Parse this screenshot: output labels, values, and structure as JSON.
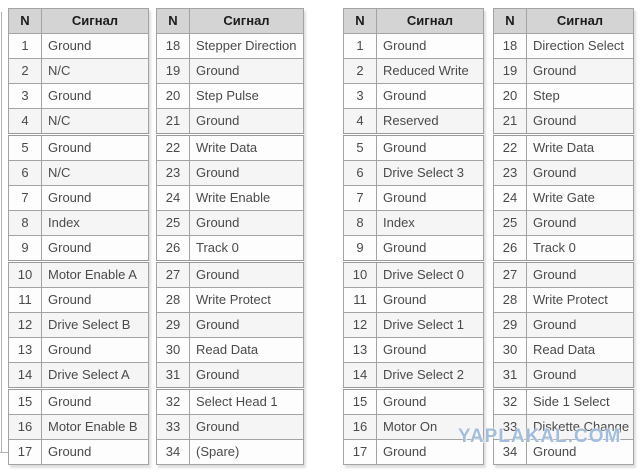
{
  "columns": {
    "n": "N",
    "signal": "Сигнал"
  },
  "tables": [
    {
      "header": {
        "n": "N",
        "signal": "Сигнал"
      },
      "rows": [
        [
          "1",
          "Ground"
        ],
        [
          "2",
          "N/C"
        ],
        [
          "3",
          "Ground"
        ],
        [
          "4",
          "N/C"
        ],
        [
          "5",
          "Ground"
        ],
        [
          "6",
          "N/C"
        ],
        [
          "7",
          "Ground"
        ],
        [
          "8",
          "Index"
        ],
        [
          "9",
          "Ground"
        ],
        [
          "10",
          "Motor Enable A"
        ],
        [
          "11",
          "Ground"
        ],
        [
          "12",
          "Drive Select B"
        ],
        [
          "13",
          "Ground"
        ],
        [
          "14",
          "Drive Select A"
        ],
        [
          "15",
          "Ground"
        ],
        [
          "16",
          "Motor Enable B"
        ],
        [
          "17",
          "Ground"
        ]
      ]
    },
    {
      "header": {
        "n": "N",
        "signal": "Сигнал"
      },
      "rows": [
        [
          "18",
          "Stepper Direction"
        ],
        [
          "19",
          "Ground"
        ],
        [
          "20",
          "Step Pulse"
        ],
        [
          "21",
          "Ground"
        ],
        [
          "22",
          "Write Data"
        ],
        [
          "23",
          "Ground"
        ],
        [
          "24",
          "Write Enable"
        ],
        [
          "25",
          "Ground"
        ],
        [
          "26",
          "Track 0"
        ],
        [
          "27",
          "Ground"
        ],
        [
          "28",
          "Write Protect"
        ],
        [
          "29",
          "Ground"
        ],
        [
          "30",
          "Read Data"
        ],
        [
          "31",
          "Ground"
        ],
        [
          "32",
          "Select Head 1"
        ],
        [
          "33",
          "Ground"
        ],
        [
          "34",
          "(Spare)"
        ]
      ]
    },
    {
      "header": {
        "n": "N",
        "signal": "Сигнал"
      },
      "rows": [
        [
          "1",
          "Ground"
        ],
        [
          "2",
          "Reduced Write"
        ],
        [
          "3",
          "Ground"
        ],
        [
          "4",
          "Reserved"
        ],
        [
          "5",
          "Ground"
        ],
        [
          "6",
          "Drive Select 3"
        ],
        [
          "7",
          "Ground"
        ],
        [
          "8",
          "Index"
        ],
        [
          "9",
          "Ground"
        ],
        [
          "10",
          "Drive Select 0"
        ],
        [
          "11",
          "Ground"
        ],
        [
          "12",
          "Drive Select 1"
        ],
        [
          "13",
          "Ground"
        ],
        [
          "14",
          "Drive Select 2"
        ],
        [
          "15",
          "Ground"
        ],
        [
          "16",
          "Motor On"
        ],
        [
          "17",
          "Ground"
        ]
      ]
    },
    {
      "header": {
        "n": "N",
        "signal": "Сигнал"
      },
      "rows": [
        [
          "18",
          "Direction Select"
        ],
        [
          "19",
          "Ground"
        ],
        [
          "20",
          "Step"
        ],
        [
          "21",
          "Ground"
        ],
        [
          "22",
          "Write Data"
        ],
        [
          "23",
          "Ground"
        ],
        [
          "24",
          "Write Gate"
        ],
        [
          "25",
          "Ground"
        ],
        [
          "26",
          "Track 0"
        ],
        [
          "27",
          "Ground"
        ],
        [
          "28",
          "Write Protect"
        ],
        [
          "29",
          "Ground"
        ],
        [
          "30",
          "Read Data"
        ],
        [
          "31",
          "Ground"
        ],
        [
          "32",
          "Side 1 Select"
        ],
        [
          "33",
          "Diskette Change"
        ],
        [
          "34",
          "Ground"
        ]
      ]
    }
  ],
  "watermark": {
    "text": "YAPLAKAL.COM"
  },
  "colors": {
    "header_bg": "#d4d4d4",
    "header_text": "#1b1b1b",
    "cell_text": "#4a4a4a",
    "border": "#a3a3a3",
    "watermark": "#93b2d6"
  }
}
